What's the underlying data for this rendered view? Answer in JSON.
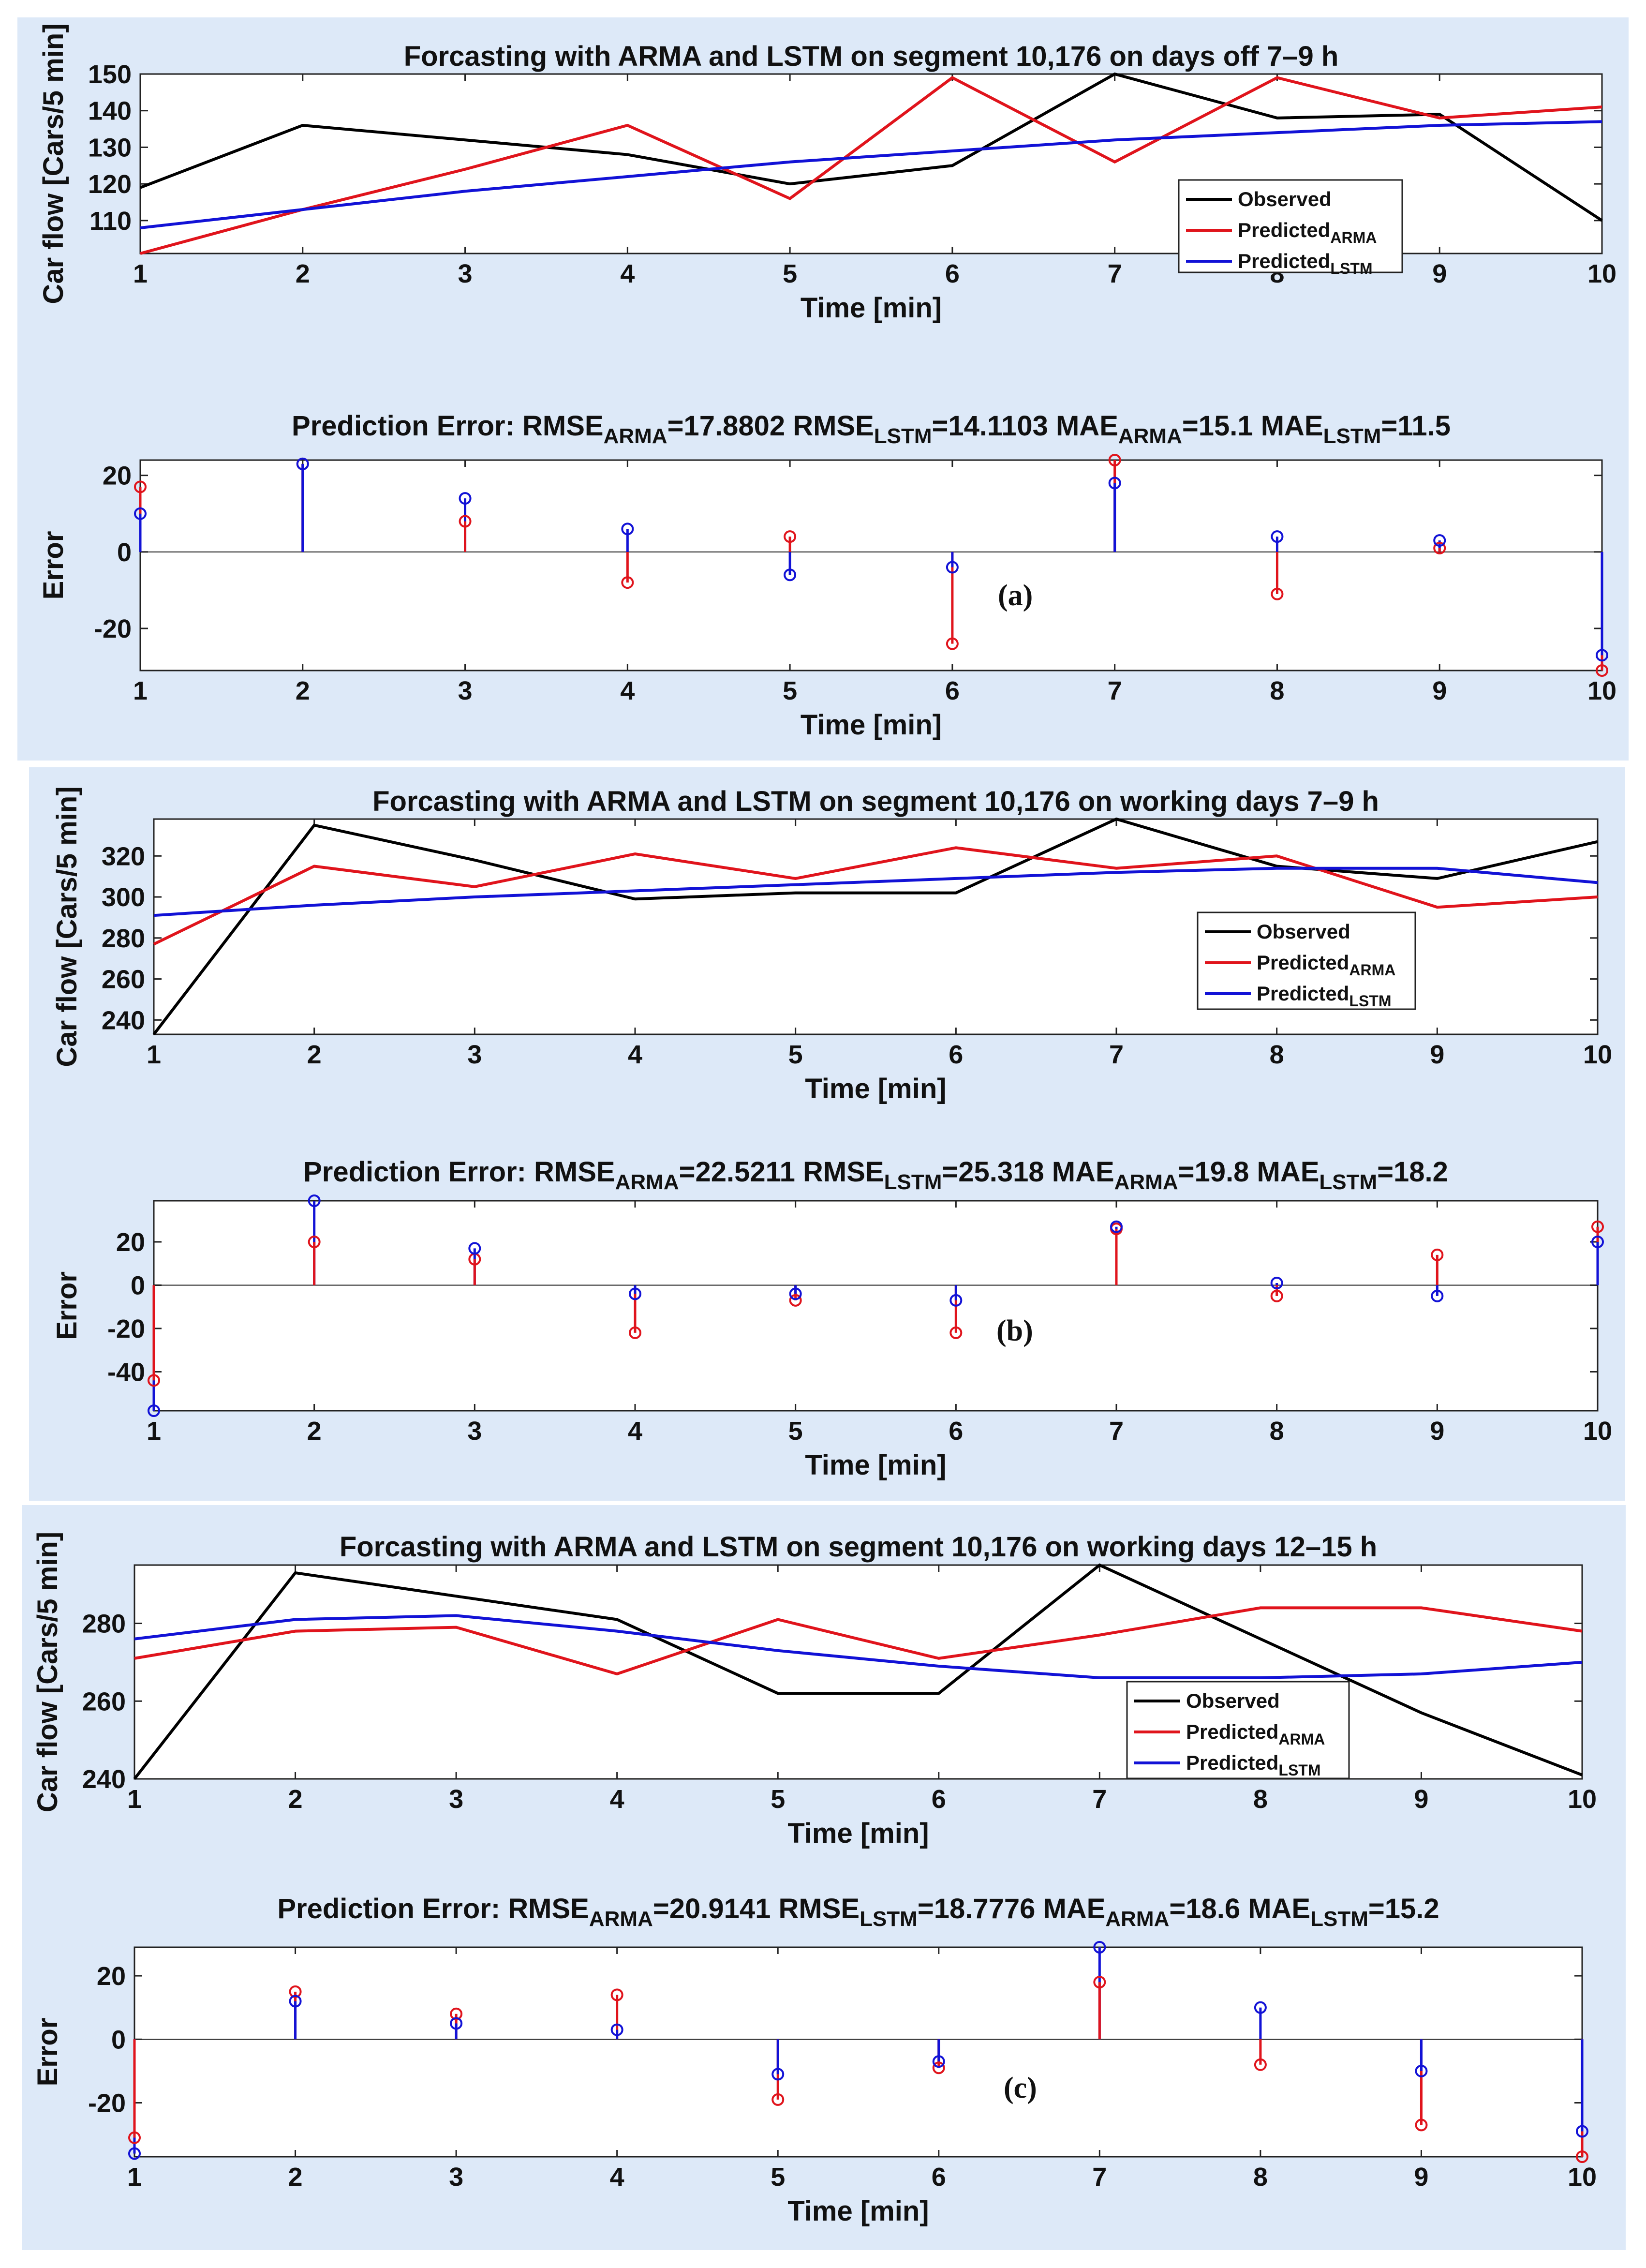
{
  "chart_data": [
    {
      "id": "a",
      "panel_label": "(a)",
      "forecast": {
        "type": "line",
        "title": "Forcasting with ARMA and LSTM on segment 10,176 on days off 7–9 h",
        "xlabel": "Time [min]",
        "ylabel": "Car flow [Cars/5 min]",
        "x": [
          1,
          2,
          3,
          4,
          5,
          6,
          7,
          8,
          9,
          10
        ],
        "xlim": [
          1,
          10
        ],
        "ylim": [
          101,
          150
        ],
        "yticks": [
          110,
          120,
          130,
          140,
          150
        ],
        "legend_position": "right",
        "series": [
          {
            "name": "Observed",
            "sub": "",
            "color": "#000000",
            "values": [
              119,
              136,
              132,
              128,
              120,
              125,
              150,
              138,
              139,
              110
            ]
          },
          {
            "name": "Predicted",
            "sub": "ARMA",
            "color": "#e0141c",
            "values": [
              101,
              113,
              124,
              136,
              116,
              149,
              126,
              149,
              138,
              141
            ]
          },
          {
            "name": "Predicted",
            "sub": "LSTM",
            "color": "#1212d6",
            "values": [
              108,
              113,
              118,
              122,
              126,
              129,
              132,
              134,
              136,
              137
            ]
          }
        ]
      },
      "error": {
        "type": "stem",
        "title_parts": [
          {
            "text": "Prediction Error: RMSE"
          },
          {
            "sub": "ARMA"
          },
          {
            "text": "=17.8802  RMSE"
          },
          {
            "sub": "LSTM"
          },
          {
            "text": "=14.1103  MAE"
          },
          {
            "sub": "ARMA"
          },
          {
            "text": "=15.1  MAE"
          },
          {
            "sub": "LSTM"
          },
          {
            "text": "=11.5"
          }
        ],
        "xlabel": "Time [min]",
        "ylabel": "Error",
        "x": [
          1,
          2,
          3,
          4,
          5,
          6,
          7,
          8,
          9,
          10
        ],
        "xlim": [
          1,
          10
        ],
        "ylim": [
          -31,
          24
        ],
        "yticks": [
          -20,
          0,
          20
        ],
        "series": [
          {
            "name": "ARMA",
            "color": "#e0141c",
            "values": [
              17,
              23,
              8,
              -8,
              4,
              -24,
              24,
              -11,
              1,
              -31
            ]
          },
          {
            "name": "LSTM",
            "color": "#1212d6",
            "values": [
              10,
              23,
              14,
              6,
              -6,
              -4,
              18,
              4,
              3,
              -27
            ]
          }
        ]
      }
    },
    {
      "id": "b",
      "panel_label": "(b)",
      "forecast": {
        "type": "line",
        "title": "Forcasting with ARMA and LSTM on segment 10,176 on working days 7–9 h",
        "xlabel": "Time [min]",
        "ylabel": "Car flow [Cars/5 min]",
        "x": [
          1,
          2,
          3,
          4,
          5,
          6,
          7,
          8,
          9,
          10
        ],
        "xlim": [
          1,
          10
        ],
        "ylim": [
          233,
          338
        ],
        "yticks": [
          240,
          260,
          280,
          300,
          320
        ],
        "legend_position": "right",
        "series": [
          {
            "name": "Observed",
            "sub": "",
            "color": "#000000",
            "values": [
              233,
              335,
              318,
              299,
              302,
              302,
              338,
              315,
              309,
              327
            ]
          },
          {
            "name": "Predicted",
            "sub": "ARMA",
            "color": "#e0141c",
            "values": [
              277,
              315,
              305,
              321,
              309,
              324,
              314,
              320,
              295,
              300
            ]
          },
          {
            "name": "Predicted",
            "sub": "LSTM",
            "color": "#1212d6",
            "values": [
              291,
              296,
              300,
              303,
              306,
              309,
              312,
              314,
              314,
              307
            ]
          }
        ]
      },
      "error": {
        "type": "stem",
        "title_parts": [
          {
            "text": "Prediction Error: RMSE"
          },
          {
            "sub": "ARMA"
          },
          {
            "text": "=22.5211  RMSE"
          },
          {
            "sub": "LSTM"
          },
          {
            "text": "=25.318  MAE"
          },
          {
            "sub": "ARMA"
          },
          {
            "text": "=19.8  MAE"
          },
          {
            "sub": "LSTM"
          },
          {
            "text": "=18.2"
          }
        ],
        "xlabel": "Time [min]",
        "ylabel": "Error",
        "x": [
          1,
          2,
          3,
          4,
          5,
          6,
          7,
          8,
          9,
          10
        ],
        "xlim": [
          1,
          10
        ],
        "ylim": [
          -58,
          39
        ],
        "yticks": [
          -40,
          -20,
          0,
          20
        ],
        "series": [
          {
            "name": "ARMA",
            "color": "#e0141c",
            "values": [
              -44,
              20,
              12,
              -22,
              -7,
              -22,
              26,
              -5,
              14,
              27
            ]
          },
          {
            "name": "LSTM",
            "color": "#1212d6",
            "values": [
              -58,
              39,
              17,
              -4,
              -4,
              -7,
              27,
              1,
              -5,
              20
            ]
          }
        ]
      }
    },
    {
      "id": "c",
      "panel_label": "(c)",
      "forecast": {
        "type": "line",
        "title": "Forcasting with ARMA and LSTM on segment 10,176 on working days 12–15 h",
        "xlabel": "Time [min]",
        "ylabel": "Car flow [Cars/5 min]",
        "x": [
          1,
          2,
          3,
          4,
          5,
          6,
          7,
          8,
          9,
          10
        ],
        "xlim": [
          1,
          10
        ],
        "ylim": [
          240,
          295
        ],
        "yticks": [
          240,
          260,
          280
        ],
        "legend_position": "bottom-right",
        "series": [
          {
            "name": "Observed",
            "sub": "",
            "color": "#000000",
            "values": [
              240,
              293,
              287,
              281,
              262,
              262,
              295,
              276,
              257,
              241
            ]
          },
          {
            "name": "Predicted",
            "sub": "ARMA",
            "color": "#e0141c",
            "values": [
              271,
              278,
              279,
              267,
              281,
              271,
              277,
              284,
              284,
              278
            ]
          },
          {
            "name": "Predicted",
            "sub": "LSTM",
            "color": "#1212d6",
            "values": [
              276,
              281,
              282,
              278,
              273,
              269,
              266,
              266,
              267,
              270
            ]
          }
        ]
      },
      "error": {
        "type": "stem",
        "title_parts": [
          {
            "text": "Prediction Error: RMSE"
          },
          {
            "sub": "ARMA"
          },
          {
            "text": "=20.9141  RMSE"
          },
          {
            "sub": "LSTM"
          },
          {
            "text": "=18.7776  MAE"
          },
          {
            "sub": "ARMA"
          },
          {
            "text": "=18.6  MAE"
          },
          {
            "sub": "LSTM"
          },
          {
            "text": "=15.2"
          }
        ],
        "xlabel": "Time [min]",
        "ylabel": "Error",
        "x": [
          1,
          2,
          3,
          4,
          5,
          6,
          7,
          8,
          9,
          10
        ],
        "xlim": [
          1,
          10
        ],
        "ylim": [
          -37,
          29
        ],
        "yticks": [
          -20,
          0,
          20
        ],
        "series": [
          {
            "name": "ARMA",
            "color": "#e0141c",
            "values": [
              -31,
              15,
              8,
              14,
              -19,
              -9,
              18,
              -8,
              -27,
              -37
            ]
          },
          {
            "name": "LSTM",
            "color": "#1212d6",
            "values": [
              -36,
              12,
              5,
              3,
              -11,
              -7,
              29,
              10,
              -10,
              -29
            ]
          }
        ]
      }
    }
  ]
}
